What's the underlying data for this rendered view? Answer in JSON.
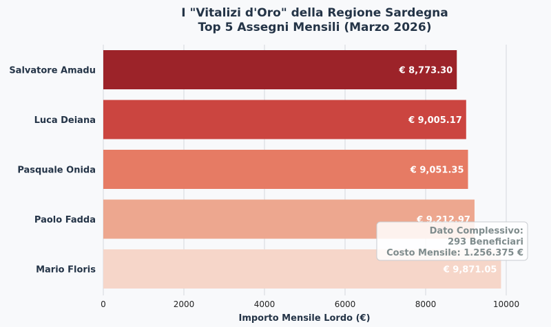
{
  "chart_data": {
    "type": "bar",
    "orientation": "horizontal",
    "title": "I \"Vitalizi d'Oro\" della Regione Sardegna",
    "subtitle": "Top 5 Assegni Mensili (Marzo 2026)",
    "xlabel": "Importo Mensile Lordo (€)",
    "ylabel": "",
    "xlim": [
      0,
      10300
    ],
    "xticks": [
      0,
      2000,
      4000,
      6000,
      8000,
      10000
    ],
    "xtick_labels": [
      "0",
      "2000",
      "4000",
      "6000",
      "8000",
      "10000"
    ],
    "grid": "vertical",
    "categories": [
      "Salvatore Amadu",
      "Luca Deiana",
      "Pasquale Onida",
      "Paolo Fadda",
      "Mario Floris"
    ],
    "values": [
      8773.3,
      9005.17,
      9051.35,
      9212.97,
      9871.05
    ],
    "data_labels": [
      "€ 8,773.30",
      "€ 9,005.17",
      "€ 9,051.35",
      "€ 9,212.97",
      "€ 9,871.05"
    ],
    "colors": [
      "#9c2329",
      "#cb4540",
      "#e67b64",
      "#eda78f",
      "#f6d6c9"
    ],
    "annotation": {
      "lines": [
        "Dato Complessivo:",
        "293 Beneficiari",
        "Costo Mensile: 1.256.375 €"
      ]
    }
  }
}
